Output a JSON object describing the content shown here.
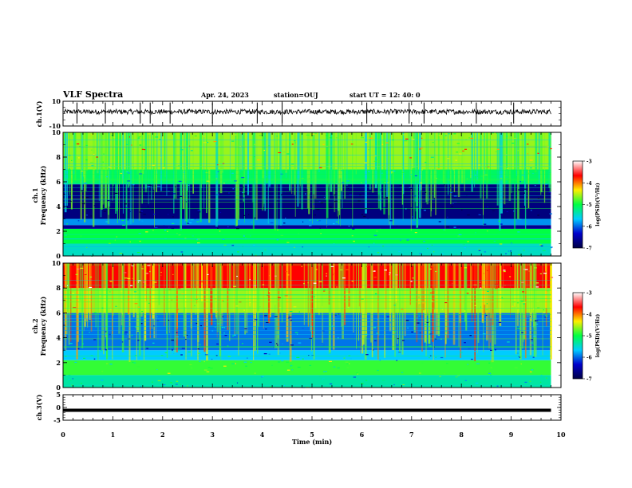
{
  "header": {
    "title": "VLF Spectra",
    "date": "Apr. 24, 2023",
    "station": "station=OUJ",
    "start_ut": "start UT =  12: 40: 0"
  },
  "colorbar": {
    "label": "log(PSD)(V²/Hz)",
    "ticks": [
      "-3",
      "-4",
      "-5",
      "-6",
      "-7"
    ],
    "colors": [
      "#ffffff",
      "#ff0000",
      "#ffee00",
      "#00ff44",
      "#00ccff",
      "#0000cc",
      "#000044"
    ]
  },
  "chart_data": [
    {
      "type": "line",
      "panel": "ch.1(V) waveform",
      "ylabel": "ch.1(V)",
      "ylim": [
        -10,
        10
      ],
      "yticks": [
        "10",
        "-10"
      ],
      "xlim": [
        0,
        10
      ],
      "baseline": 0,
      "spikes_min": [
        0.28,
        0.85,
        1.55,
        1.75,
        2.15,
        3.0,
        3.9,
        4.4,
        6.1,
        6.95,
        7.25,
        8.3,
        9.05
      ]
    },
    {
      "type": "heatmap",
      "panel": "ch.1 spectrogram",
      "ylabel": "ch.1 Frequency (kHz)",
      "ylim": [
        0,
        10
      ],
      "yticks": [
        "0",
        "2",
        "4",
        "6",
        "8",
        "10"
      ],
      "xlim": [
        0,
        9.8
      ],
      "bands": [
        {
          "f": [
            0,
            1
          ],
          "level": -5.4
        },
        {
          "f": [
            1,
            2.2
          ],
          "level": -5.0
        },
        {
          "f": [
            2.2,
            2.5
          ],
          "level": -6.6
        },
        {
          "f": [
            2.5,
            3
          ],
          "level": -5.8
        },
        {
          "f": [
            3,
            5.8
          ],
          "level": -6.7
        },
        {
          "f": [
            5.8,
            7
          ],
          "level": -5.1
        },
        {
          "f": [
            7,
            10
          ],
          "level": -4.4
        }
      ]
    },
    {
      "type": "heatmap",
      "panel": "ch.2 spectrogram",
      "ylabel": "ch.2 Frequency (kHz)",
      "ylim": [
        0,
        10
      ],
      "yticks": [
        "0",
        "2",
        "4",
        "6",
        "8",
        "10"
      ],
      "xlim": [
        0,
        9.8
      ],
      "bands": [
        {
          "f": [
            0,
            1
          ],
          "level": -5.3
        },
        {
          "f": [
            1,
            2.2
          ],
          "level": -4.8
        },
        {
          "f": [
            2.2,
            3
          ],
          "level": -5.6
        },
        {
          "f": [
            3,
            6
          ],
          "level": -5.9
        },
        {
          "f": [
            6,
            8
          ],
          "level": -4.4
        },
        {
          "f": [
            8,
            10
          ],
          "level": -3.5
        }
      ]
    },
    {
      "type": "line",
      "panel": "ch.3(V) waveform",
      "ylabel": "ch.3(V)",
      "ylim": [
        -5,
        5
      ],
      "yticks": [
        "5",
        "0",
        "-5"
      ],
      "xlim": [
        0,
        10
      ],
      "baseline": 0
    }
  ],
  "xaxis": {
    "label": "Time (min)",
    "ticks": [
      "0",
      "1",
      "2",
      "3",
      "4",
      "5",
      "6",
      "7",
      "8",
      "9",
      "10"
    ]
  }
}
